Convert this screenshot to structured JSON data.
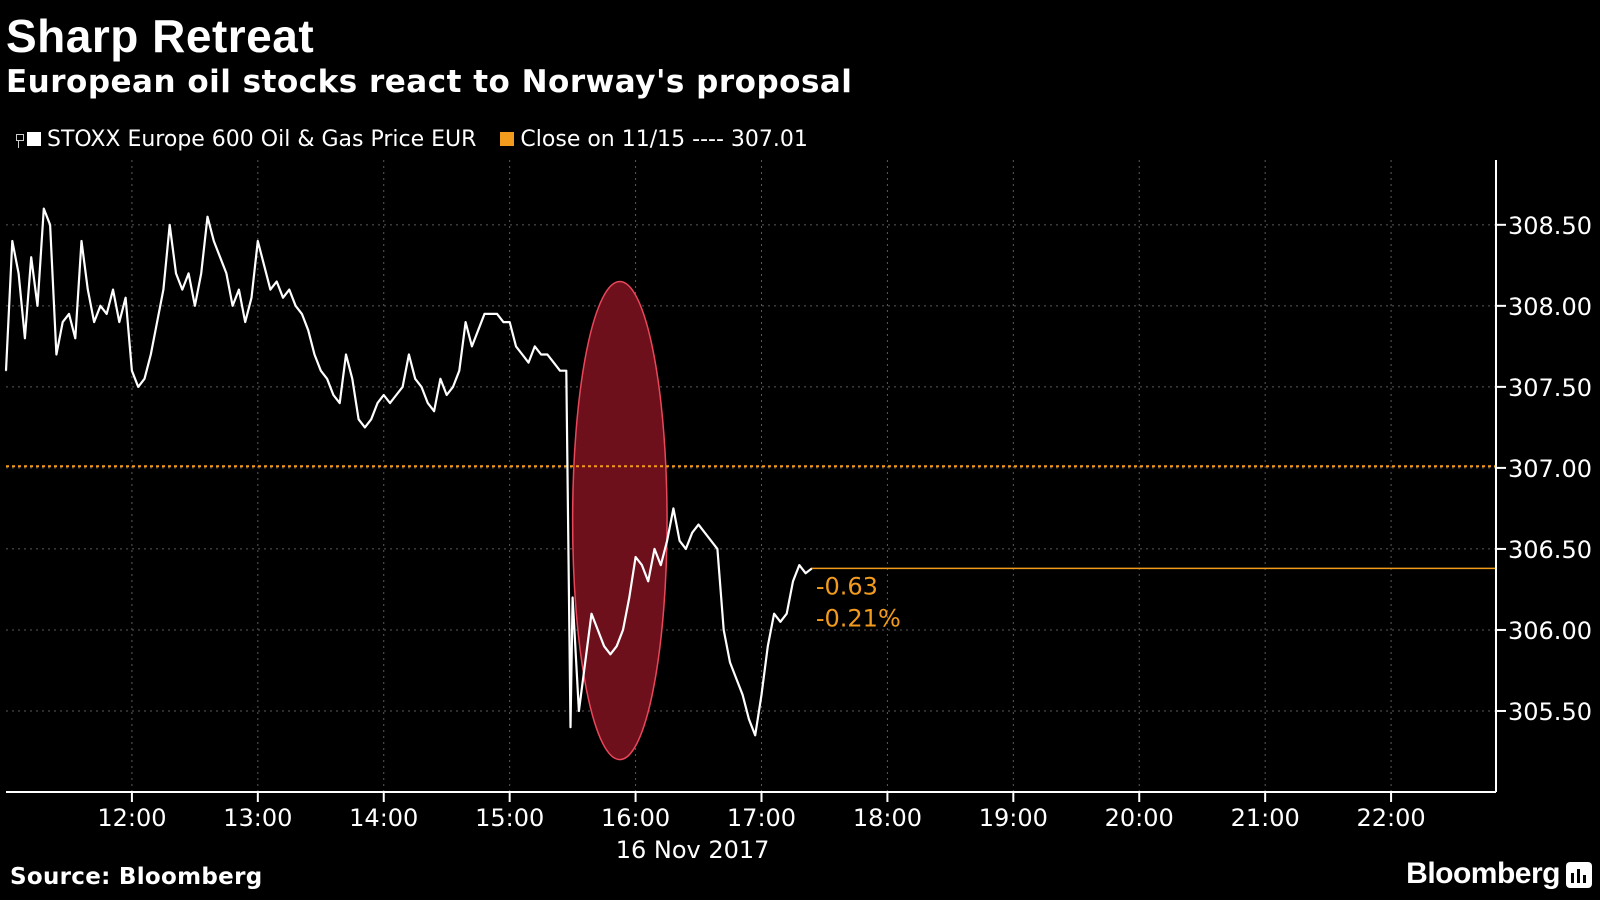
{
  "title": "Sharp Retreat",
  "subtitle": "European oil stocks react to Norway's proposal",
  "source": "Source: Bloomberg",
  "brand": "Bloomberg",
  "brand_icon": "bloomberg-terminal-icon",
  "colors": {
    "background": "#000000",
    "series": "#ffffff",
    "reference": "#f29b1d",
    "highlight_fill": "#6e0f1c",
    "highlight_stroke": "#e8475a",
    "grid": "#5a5a5a"
  },
  "chart_data": {
    "type": "line",
    "title": "Sharp Retreat",
    "subtitle": "European oil stocks react to Norway's proposal",
    "xlabel": "16 Nov 2017",
    "ylabel": "",
    "x_ticks": [
      "12:00",
      "13:00",
      "14:00",
      "15:00",
      "16:00",
      "17:00",
      "18:00",
      "19:00",
      "20:00",
      "21:00",
      "22:00"
    ],
    "y_ticks": [
      "308.50",
      "308.00",
      "307.50",
      "307.00",
      "306.50",
      "306.00",
      "305.50"
    ],
    "ylim": [
      305.0,
      308.9
    ],
    "xlim": [
      "11:00",
      "22:50"
    ],
    "y_axis_position": "right",
    "grid": true,
    "legend_placement": "top-left",
    "series": [
      {
        "name": "STOXX Europe 600 Oil & Gas Price EUR",
        "color": "#ffffff",
        "points": [
          [
            "11:00",
            307.6
          ],
          [
            "11:03",
            308.4
          ],
          [
            "11:06",
            308.2
          ],
          [
            "11:09",
            307.8
          ],
          [
            "11:12",
            308.3
          ],
          [
            "11:15",
            308.0
          ],
          [
            "11:18",
            308.6
          ],
          [
            "11:21",
            308.5
          ],
          [
            "11:24",
            307.7
          ],
          [
            "11:27",
            307.9
          ],
          [
            "11:30",
            307.95
          ],
          [
            "11:33",
            307.8
          ],
          [
            "11:36",
            308.4
          ],
          [
            "11:39",
            308.1
          ],
          [
            "11:42",
            307.9
          ],
          [
            "11:45",
            308.0
          ],
          [
            "11:48",
            307.95
          ],
          [
            "11:51",
            308.1
          ],
          [
            "11:54",
            307.9
          ],
          [
            "11:57",
            308.05
          ],
          [
            "12:00",
            307.6
          ],
          [
            "12:03",
            307.5
          ],
          [
            "12:06",
            307.55
          ],
          [
            "12:09",
            307.7
          ],
          [
            "12:12",
            307.9
          ],
          [
            "12:15",
            308.1
          ],
          [
            "12:18",
            308.5
          ],
          [
            "12:21",
            308.2
          ],
          [
            "12:24",
            308.1
          ],
          [
            "12:27",
            308.2
          ],
          [
            "12:30",
            308.0
          ],
          [
            "12:33",
            308.2
          ],
          [
            "12:36",
            308.55
          ],
          [
            "12:39",
            308.4
          ],
          [
            "12:42",
            308.3
          ],
          [
            "12:45",
            308.2
          ],
          [
            "12:48",
            308.0
          ],
          [
            "12:51",
            308.1
          ],
          [
            "12:54",
            307.9
          ],
          [
            "12:57",
            308.05
          ],
          [
            "13:00",
            308.4
          ],
          [
            "13:03",
            308.25
          ],
          [
            "13:06",
            308.1
          ],
          [
            "13:09",
            308.15
          ],
          [
            "13:12",
            308.05
          ],
          [
            "13:15",
            308.1
          ],
          [
            "13:18",
            308.0
          ],
          [
            "13:21",
            307.95
          ],
          [
            "13:24",
            307.85
          ],
          [
            "13:27",
            307.7
          ],
          [
            "13:30",
            307.6
          ],
          [
            "13:33",
            307.55
          ],
          [
            "13:36",
            307.45
          ],
          [
            "13:39",
            307.4
          ],
          [
            "13:42",
            307.7
          ],
          [
            "13:45",
            307.55
          ],
          [
            "13:48",
            307.3
          ],
          [
            "13:51",
            307.25
          ],
          [
            "13:54",
            307.3
          ],
          [
            "13:57",
            307.4
          ],
          [
            "14:00",
            307.45
          ],
          [
            "14:03",
            307.4
          ],
          [
            "14:06",
            307.45
          ],
          [
            "14:09",
            307.5
          ],
          [
            "14:12",
            307.7
          ],
          [
            "14:15",
            307.55
          ],
          [
            "14:18",
            307.5
          ],
          [
            "14:21",
            307.4
          ],
          [
            "14:24",
            307.35
          ],
          [
            "14:27",
            307.55
          ],
          [
            "14:30",
            307.45
          ],
          [
            "14:33",
            307.5
          ],
          [
            "14:36",
            307.6
          ],
          [
            "14:39",
            307.9
          ],
          [
            "14:42",
            307.75
          ],
          [
            "14:45",
            307.85
          ],
          [
            "14:48",
            307.95
          ],
          [
            "14:51",
            307.95
          ],
          [
            "14:54",
            307.95
          ],
          [
            "14:57",
            307.9
          ],
          [
            "15:00",
            307.9
          ],
          [
            "15:03",
            307.75
          ],
          [
            "15:06",
            307.7
          ],
          [
            "15:09",
            307.65
          ],
          [
            "15:12",
            307.75
          ],
          [
            "15:15",
            307.7
          ],
          [
            "15:18",
            307.7
          ],
          [
            "15:21",
            307.65
          ],
          [
            "15:24",
            307.6
          ],
          [
            "15:27",
            307.6
          ],
          [
            "15:29",
            305.4
          ],
          [
            "15:30",
            306.2
          ],
          [
            "15:33",
            305.5
          ],
          [
            "15:36",
            305.8
          ],
          [
            "15:39",
            306.1
          ],
          [
            "15:42",
            306.0
          ],
          [
            "15:45",
            305.9
          ],
          [
            "15:48",
            305.85
          ],
          [
            "15:51",
            305.9
          ],
          [
            "15:54",
            306.0
          ],
          [
            "15:57",
            306.2
          ],
          [
            "16:00",
            306.45
          ],
          [
            "16:03",
            306.4
          ],
          [
            "16:06",
            306.3
          ],
          [
            "16:09",
            306.5
          ],
          [
            "16:12",
            306.4
          ],
          [
            "16:15",
            306.55
          ],
          [
            "16:18",
            306.75
          ],
          [
            "16:21",
            306.55
          ],
          [
            "16:24",
            306.5
          ],
          [
            "16:27",
            306.6
          ],
          [
            "16:30",
            306.65
          ],
          [
            "16:33",
            306.6
          ],
          [
            "16:36",
            306.55
          ],
          [
            "16:39",
            306.5
          ],
          [
            "16:42",
            306.0
          ],
          [
            "16:45",
            305.8
          ],
          [
            "16:48",
            305.7
          ],
          [
            "16:51",
            305.6
          ],
          [
            "16:54",
            305.45
          ],
          [
            "16:57",
            305.35
          ],
          [
            "17:00",
            305.6
          ],
          [
            "17:03",
            305.9
          ],
          [
            "17:06",
            306.1
          ],
          [
            "17:09",
            306.05
          ],
          [
            "17:12",
            306.1
          ],
          [
            "17:15",
            306.3
          ],
          [
            "17:18",
            306.4
          ],
          [
            "17:21",
            306.35
          ],
          [
            "17:24",
            306.38
          ]
        ]
      },
      {
        "name": "Close on 11/15 ---- 307.01",
        "color": "#f29b1d",
        "type": "reference_line",
        "value": 307.01
      }
    ],
    "annotations": [
      {
        "type": "last_value_line",
        "value": 306.38,
        "color": "#f29b1d"
      },
      {
        "text": "-0.63",
        "color": "#f29b1d"
      },
      {
        "text": "-0.21%",
        "color": "#f29b1d"
      },
      {
        "type": "ellipse_highlight",
        "x_range": [
          "15:30",
          "16:15"
        ],
        "y_range": [
          305.2,
          308.15
        ],
        "color": "#6e0f1c"
      }
    ]
  },
  "legend": {
    "items": [
      {
        "label": "STOXX Europe 600 Oil & Gas Price EUR",
        "color": "#ffffff"
      },
      {
        "label": "Close on 11/15 ---- 307.01",
        "color": "#f29b1d"
      }
    ]
  }
}
